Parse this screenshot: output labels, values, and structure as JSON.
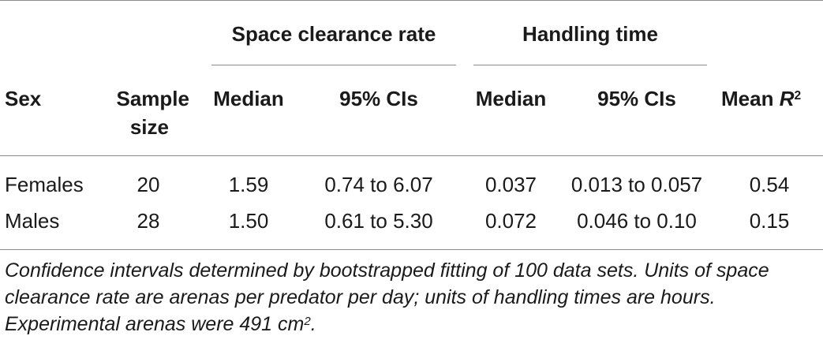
{
  "table": {
    "group_headers": {
      "space_clearance": "Space clearance rate",
      "handling": "Handling time"
    },
    "columns": {
      "sex": "Sex",
      "sample_line1": "Sample",
      "sample_line2": "size",
      "median1": "Median",
      "ci1": "95% CIs",
      "median2": "Median",
      "ci2": "95% CIs",
      "mean_r2_prefix": "Mean ",
      "mean_r2_var": "R",
      "mean_r2_sup": "2"
    },
    "rows": [
      {
        "sex": "Females",
        "n": "20",
        "scr_median": "1.59",
        "scr_ci": "0.74 to 6.07",
        "ht_median": "0.037",
        "ht_ci": "0.013 to 0.057",
        "r2": "0.54"
      },
      {
        "sex": "Males",
        "n": "28",
        "scr_median": "1.50",
        "scr_ci": "0.61 to 5.30",
        "ht_median": "0.072",
        "ht_ci": "0.046 to 0.10",
        "r2": "0.15"
      }
    ],
    "footnote": {
      "text": "Confidence intervals determined by bootstrapped fitting of 100 data sets. Units of space clearance rate are arenas per predator per day; units of handling times are hours. Experimental arenas were 491 cm",
      "sup": "2",
      "end": "."
    }
  }
}
